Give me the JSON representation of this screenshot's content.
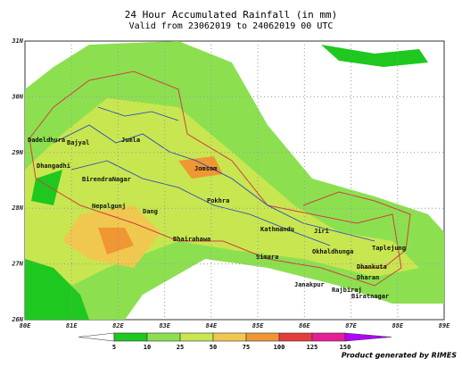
{
  "title": "24 Hour Accumulated  Rainfall (in mm)",
  "subtitle": "Valid from 23062019 to 24062019 00 UTC",
  "lat_labels": [
    "31N",
    "30N",
    "29N",
    "28N",
    "27N",
    "26N"
  ],
  "lon_labels": [
    "80E",
    "81E",
    "82E",
    "83E",
    "84E",
    "85E",
    "86E",
    "87E",
    "88E",
    "89E"
  ],
  "colorbar": {
    "levels": [
      5,
      10,
      25,
      50,
      75,
      100,
      125,
      150
    ],
    "colors": [
      "#ffffff",
      "#1ec81e",
      "#8ce050",
      "#c8e650",
      "#f0c850",
      "#f09632",
      "#e63c3c",
      "#e61e96",
      "#b400ff"
    ]
  },
  "places": [
    "Dadeldhura",
    "Bajyal",
    "Jumla",
    "Dhangadhi",
    "BirendraNagar",
    "Jomsom",
    "Nepalgunj",
    "Dang",
    "Pokhra",
    "Bhairahawa",
    "Kathmandu",
    "Jiri",
    "Simara",
    "Okhaldhunga",
    "Taplejung",
    "Dhankuta",
    "Dharan",
    "Janakpur",
    "Rajbiraj",
    "Biratnagar"
  ],
  "credit": "Product generated by RIMES"
}
